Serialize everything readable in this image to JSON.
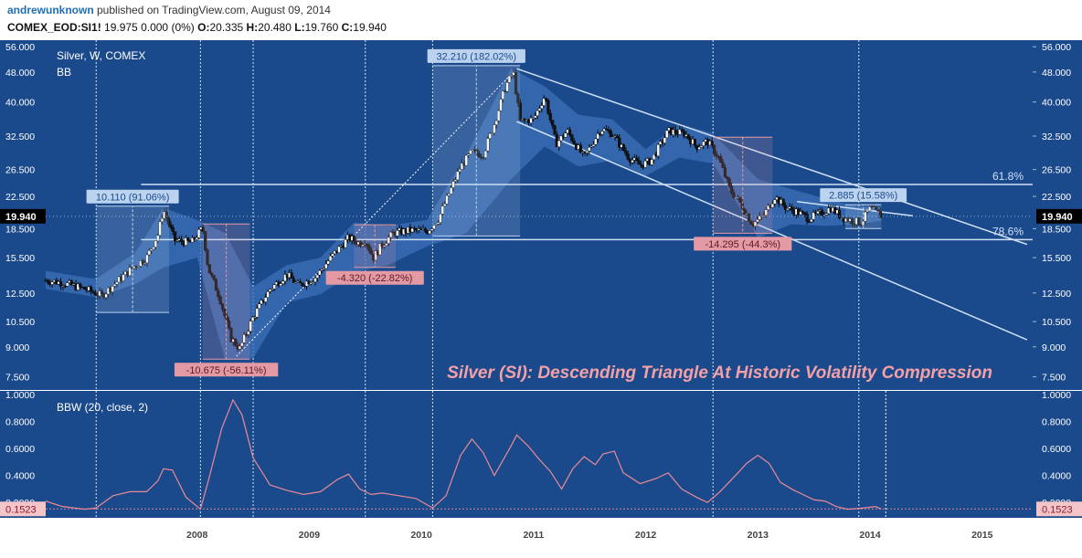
{
  "header": {
    "author": "andrewunknown",
    "published_text": " published on TradingView.com, August 09, 2014",
    "symbol": "COMEX_EOD:SI1!",
    "last": "19.975",
    "change": "0.000 (0%)",
    "open_label": "O:",
    "open": "20.335",
    "high_label": "H:",
    "high": "20.480",
    "low_label": "L:",
    "low": "19.760",
    "close_label": "C:",
    "close": "19.940"
  },
  "colors": {
    "background": "#1b4a8c",
    "grid": "#ffffff",
    "candle_up": "#ffffff",
    "candle_down": "#111111",
    "band_fill": "#3c70b8",
    "trend_lines": "#cfe0f5",
    "measure_up": "#bcd3ef",
    "measure_down": "#e39aa4",
    "title_text": "#f3a0a7",
    "bbw_line": "#e98a96",
    "price_label": "#000000"
  },
  "chart_data": [
    {
      "type": "line",
      "title": "Silver (SI): Descending Triangle At Historic Volatility Compression",
      "legend": [
        "Silver, W, COMEX",
        "BB"
      ],
      "y_scale": "log",
      "ylim": [
        7.0,
        57.0
      ],
      "y_ticks": [
        "56.000",
        "48.000",
        "40.000",
        "32.500",
        "26.500",
        "22.500",
        "18.500",
        "15.500",
        "12.500",
        "10.500",
        "9.000",
        "7.500"
      ],
      "x_ticks": [
        "2008",
        "2009",
        "2010",
        "2011",
        "2012",
        "2013",
        "2014",
        "2015"
      ],
      "last_price_label": "19.940",
      "price_points": [
        [
          2007.15,
          13.5
        ],
        [
          2007.3,
          13.3
        ],
        [
          2007.5,
          12.8
        ],
        [
          2007.65,
          12.3
        ],
        [
          2007.8,
          13.5
        ],
        [
          2007.95,
          14.8
        ],
        [
          2008.05,
          15.5
        ],
        [
          2008.15,
          17.8
        ],
        [
          2008.2,
          20.8
        ],
        [
          2008.3,
          17.2
        ],
        [
          2008.45,
          17.0
        ],
        [
          2008.55,
          18.6
        ],
        [
          2008.6,
          14.5
        ],
        [
          2008.7,
          12.2
        ],
        [
          2008.8,
          9.5
        ],
        [
          2008.88,
          8.9
        ],
        [
          2009.0,
          10.8
        ],
        [
          2009.15,
          12.8
        ],
        [
          2009.3,
          14.0
        ],
        [
          2009.4,
          13.1
        ],
        [
          2009.55,
          13.7
        ],
        [
          2009.7,
          15.6
        ],
        [
          2009.85,
          17.5
        ],
        [
          2009.95,
          16.9
        ],
        [
          2010.0,
          17.3
        ],
        [
          2010.07,
          15.5
        ],
        [
          2010.15,
          16.8
        ],
        [
          2010.25,
          18.0
        ],
        [
          2010.4,
          18.3
        ],
        [
          2010.55,
          18.2
        ],
        [
          2010.65,
          19.6
        ],
        [
          2010.75,
          23.0
        ],
        [
          2010.85,
          27.0
        ],
        [
          2010.95,
          29.5
        ],
        [
          2011.05,
          29.0
        ],
        [
          2011.15,
          35.0
        ],
        [
          2011.25,
          44.0
        ],
        [
          2011.32,
          48.0
        ],
        [
          2011.38,
          35.5
        ],
        [
          2011.5,
          36.0
        ],
        [
          2011.6,
          41.5
        ],
        [
          2011.7,
          31.0
        ],
        [
          2011.8,
          33.5
        ],
        [
          2011.95,
          28.5
        ],
        [
          2012.1,
          34.0
        ],
        [
          2012.2,
          33.0
        ],
        [
          2012.35,
          28.5
        ],
        [
          2012.45,
          27.2
        ],
        [
          2012.55,
          28.0
        ],
        [
          2012.7,
          33.5
        ],
        [
          2012.85,
          33.0
        ],
        [
          2012.95,
          30.5
        ],
        [
          2013.05,
          31.5
        ],
        [
          2013.15,
          28.5
        ],
        [
          2013.25,
          23.5
        ],
        [
          2013.35,
          21.5
        ],
        [
          2013.45,
          19.0
        ],
        [
          2013.55,
          20.0
        ],
        [
          2013.65,
          22.5
        ],
        [
          2013.75,
          21.0
        ],
        [
          2013.85,
          20.5
        ],
        [
          2013.95,
          19.7
        ],
        [
          2014.05,
          20.2
        ],
        [
          2014.15,
          21.0
        ],
        [
          2014.25,
          19.8
        ],
        [
          2014.35,
          19.4
        ],
        [
          2014.42,
          19.2
        ],
        [
          2014.5,
          20.9
        ],
        [
          2014.57,
          20.3
        ],
        [
          2014.6,
          19.94
        ]
      ],
      "bb_upper": [
        [
          2007.15,
          14.3
        ],
        [
          2007.6,
          13.6
        ],
        [
          2007.95,
          16.0
        ],
        [
          2008.2,
          21.0
        ],
        [
          2008.5,
          19.5
        ],
        [
          2008.75,
          18.0
        ],
        [
          2009.0,
          13.0
        ],
        [
          2009.3,
          14.8
        ],
        [
          2009.6,
          15.5
        ],
        [
          2009.9,
          19.2
        ],
        [
          2010.2,
          18.8
        ],
        [
          2010.55,
          19.5
        ],
        [
          2010.9,
          29.0
        ],
        [
          2011.3,
          49.0
        ],
        [
          2011.6,
          44.0
        ],
        [
          2011.9,
          37.0
        ],
        [
          2012.2,
          36.0
        ],
        [
          2012.5,
          30.0
        ],
        [
          2012.8,
          35.0
        ],
        [
          2013.1,
          33.0
        ],
        [
          2013.5,
          25.0
        ],
        [
          2013.8,
          23.5
        ],
        [
          2014.1,
          22.2
        ],
        [
          2014.4,
          21.1
        ],
        [
          2014.6,
          21.0
        ]
      ],
      "bb_lower": [
        [
          2007.15,
          12.8
        ],
        [
          2007.6,
          12.2
        ],
        [
          2007.95,
          13.2
        ],
        [
          2008.2,
          14.6
        ],
        [
          2008.5,
          15.5
        ],
        [
          2008.75,
          8.3
        ],
        [
          2009.0,
          8.4
        ],
        [
          2009.3,
          11.8
        ],
        [
          2009.6,
          12.4
        ],
        [
          2009.9,
          14.2
        ],
        [
          2010.2,
          14.8
        ],
        [
          2010.55,
          16.6
        ],
        [
          2010.9,
          18.0
        ],
        [
          2011.3,
          25.0
        ],
        [
          2011.6,
          30.5
        ],
        [
          2011.9,
          27.0
        ],
        [
          2012.2,
          28.0
        ],
        [
          2012.5,
          25.5
        ],
        [
          2012.8,
          28.5
        ],
        [
          2013.1,
          27.5
        ],
        [
          2013.5,
          17.5
        ],
        [
          2013.8,
          19.0
        ],
        [
          2014.1,
          18.8
        ],
        [
          2014.4,
          19.0
        ],
        [
          2014.6,
          19.4
        ]
      ],
      "trend_lines": [
        {
          "from": [
            2011.35,
            49.0
          ],
          "to": [
            2015.9,
            16.8
          ]
        },
        {
          "from": [
            2011.35,
            35.5
          ],
          "to": [
            2015.9,
            9.4
          ]
        },
        {
          "from": [
            2008.85,
            8.5
          ],
          "to": [
            2011.32,
            48.0
          ]
        },
        {
          "from": [
            2013.85,
            21.8
          ],
          "to": [
            2014.88,
            20.0
          ]
        }
      ],
      "fib_levels": [
        {
          "label": "61.8%",
          "value": 24.2,
          "from": 2008.0
        },
        {
          "label": "78.6%",
          "value": 17.3,
          "from": 2008.0
        }
      ],
      "annotations": [
        {
          "label": "10.110 (91.06%)",
          "kind": "up",
          "x0": 2007.6,
          "x1": 2008.25,
          "y0": 11.1,
          "y1": 21.2
        },
        {
          "label": "-10.675 (-56.11%)",
          "kind": "down",
          "x0": 2008.55,
          "x1": 2008.97,
          "y0": 19.02,
          "y1": 8.35
        },
        {
          "label": "-4.320 (-22.82%)",
          "kind": "down",
          "x0": 2009.9,
          "x1": 2010.27,
          "y0": 18.93,
          "y1": 14.61
        },
        {
          "label": "32.210 (182.02%)",
          "kind": "up",
          "x0": 2010.6,
          "x1": 2011.38,
          "y0": 17.69,
          "y1": 49.9
        },
        {
          "label": "-14.295 (-44.3%)",
          "kind": "down",
          "x0": 2013.1,
          "x1": 2013.63,
          "y0": 32.27,
          "y1": 17.98
        },
        {
          "label": "2.885 (15.58%)",
          "kind": "up",
          "x0": 2014.28,
          "x1": 2014.6,
          "y0": 18.5,
          "y1": 21.4
        }
      ],
      "event_lines_x": [
        2007.6,
        2008.53,
        2009.0,
        2010.0,
        2010.6,
        2013.1,
        2014.4
      ]
    },
    {
      "type": "line",
      "legend": [
        "BBW (20, close, 2)"
      ],
      "ylim": [
        0.1,
        1.0
      ],
      "y_ticks": [
        "1.0000",
        "0.8000",
        "0.6000",
        "0.4000",
        "0.2000"
      ],
      "last_value_label": "0.1523",
      "values": [
        [
          2007.15,
          0.21
        ],
        [
          2007.3,
          0.17
        ],
        [
          2007.5,
          0.15
        ],
        [
          2007.6,
          0.16
        ],
        [
          2007.75,
          0.25
        ],
        [
          2007.9,
          0.28
        ],
        [
          2008.05,
          0.28
        ],
        [
          2008.15,
          0.36
        ],
        [
          2008.2,
          0.45
        ],
        [
          2008.28,
          0.44
        ],
        [
          2008.4,
          0.24
        ],
        [
          2008.53,
          0.15
        ],
        [
          2008.6,
          0.36
        ],
        [
          2008.72,
          0.75
        ],
        [
          2008.82,
          0.96
        ],
        [
          2008.9,
          0.85
        ],
        [
          2009.0,
          0.53
        ],
        [
          2009.15,
          0.33
        ],
        [
          2009.3,
          0.29
        ],
        [
          2009.45,
          0.26
        ],
        [
          2009.6,
          0.28
        ],
        [
          2009.75,
          0.37
        ],
        [
          2009.85,
          0.41
        ],
        [
          2009.95,
          0.3
        ],
        [
          2010.05,
          0.26
        ],
        [
          2010.15,
          0.27
        ],
        [
          2010.3,
          0.25
        ],
        [
          2010.45,
          0.23
        ],
        [
          2010.6,
          0.16
        ],
        [
          2010.72,
          0.25
        ],
        [
          2010.85,
          0.55
        ],
        [
          2010.95,
          0.67
        ],
        [
          2011.05,
          0.57
        ],
        [
          2011.15,
          0.4
        ],
        [
          2011.3,
          0.62
        ],
        [
          2011.35,
          0.7
        ],
        [
          2011.45,
          0.62
        ],
        [
          2011.55,
          0.52
        ],
        [
          2011.65,
          0.43
        ],
        [
          2011.75,
          0.3
        ],
        [
          2011.85,
          0.45
        ],
        [
          2011.95,
          0.54
        ],
        [
          2012.05,
          0.48
        ],
        [
          2012.12,
          0.56
        ],
        [
          2012.22,
          0.58
        ],
        [
          2012.3,
          0.42
        ],
        [
          2012.45,
          0.34
        ],
        [
          2012.6,
          0.38
        ],
        [
          2012.7,
          0.42
        ],
        [
          2012.82,
          0.3
        ],
        [
          2012.95,
          0.24
        ],
        [
          2013.05,
          0.2
        ],
        [
          2013.15,
          0.27
        ],
        [
          2013.3,
          0.4
        ],
        [
          2013.4,
          0.49
        ],
        [
          2013.5,
          0.55
        ],
        [
          2013.6,
          0.49
        ],
        [
          2013.7,
          0.35
        ],
        [
          2013.8,
          0.3
        ],
        [
          2013.9,
          0.26
        ],
        [
          2014.0,
          0.22
        ],
        [
          2014.1,
          0.21
        ],
        [
          2014.2,
          0.17
        ],
        [
          2014.3,
          0.15
        ],
        [
          2014.45,
          0.16
        ],
        [
          2014.55,
          0.17
        ],
        [
          2014.6,
          0.1523
        ]
      ]
    }
  ]
}
